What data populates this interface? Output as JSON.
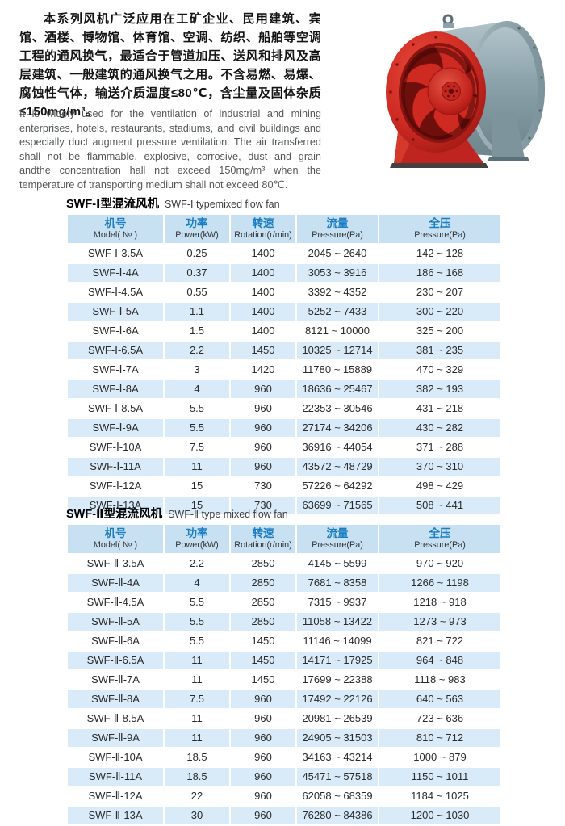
{
  "intro": {
    "zh": "本系列风机广泛应用在工矿企业、民用建筑、宾馆、酒楼、博物馆、体育馆、空调、纺织、船舶等空调工程的通风换气，最适合于管道加压、送风和排风及高层建筑、一般建筑的通风换气之用。不含易燃、易爆、腐蚀性气体，输送介质温度≤80℃，含尘量及固体杂质≤150mg/m³。",
    "en": "It is widely used for the ventilation of industrial and mining enterprises, hotels, restaurants, stadiums, and civil buildings and especially duct augment pressure ventilation. The air transferred shall not be flammable, explosive, corrosive, dust and grain andthe concentration hall not exceed 150mg/m³ when the temperature of transporting medium shall not exceed 80℃."
  },
  "fan_image": {
    "description": "mixed flow fan product photo",
    "front_color": "#cd2a22",
    "body_color": "#8ba2ab"
  },
  "colors": {
    "header_bg": "#c7e1f3",
    "stripe_bg": "#d9ebf8",
    "header_text_blue": "#1b7dc2"
  },
  "tables": [
    {
      "title_zh": "SWF-Ⅰ型混流风机",
      "title_en": "SWF-Ⅰ typemixed flow fan",
      "headers": [
        {
          "zh": "机号",
          "en": "Model( № )"
        },
        {
          "zh": "功率",
          "en": "Power(kW)"
        },
        {
          "zh": "转速",
          "en": "Rotation(r/min)"
        },
        {
          "zh": "流量",
          "en": "Pressure(Pa)"
        },
        {
          "zh": "全压",
          "en": "Pressure(Pa)"
        }
      ],
      "rows": [
        [
          "SWF-Ⅰ-3.5A",
          "0.25",
          "1400",
          "2045 ~ 2640",
          "142 ~ 128"
        ],
        [
          "SWF-Ⅰ-4A",
          "0.37",
          "1400",
          "3053 ~ 3916",
          "186 ~ 168"
        ],
        [
          "SWF-Ⅰ-4.5A",
          "0.55",
          "1400",
          "3392 ~ 4352",
          "230 ~ 207"
        ],
        [
          "SWF-Ⅰ-5A",
          "1.1",
          "1400",
          "5252 ~ 7433",
          "300 ~ 220"
        ],
        [
          "SWF-Ⅰ-6A",
          "1.5",
          "1400",
          "8121 ~ 10000",
          "325 ~ 200"
        ],
        [
          "SWF-Ⅰ-6.5A",
          "2.2",
          "1450",
          "10325 ~ 12714",
          "381 ~ 235"
        ],
        [
          "SWF-Ⅰ-7A",
          "3",
          "1420",
          "11780 ~ 15889",
          "470 ~ 329"
        ],
        [
          "SWF-Ⅰ-8A",
          "4",
          "960",
          "18636 ~ 25467",
          "382 ~ 193"
        ],
        [
          "SWF-Ⅰ-8.5A",
          "5.5",
          "960",
          "22353 ~ 30546",
          "431 ~ 218"
        ],
        [
          "SWF-Ⅰ-9A",
          "5.5",
          "960",
          "27174 ~ 34206",
          "430 ~ 282"
        ],
        [
          "SWF-Ⅰ-10A",
          "7.5",
          "960",
          "36916 ~ 44054",
          "371 ~ 288"
        ],
        [
          "SWF-Ⅰ-11A",
          "11",
          "960",
          "43572 ~ 48729",
          "370 ~ 310"
        ],
        [
          "SWF-Ⅰ-12A",
          "15",
          "730",
          "57226 ~ 64292",
          "498 ~ 429"
        ],
        [
          "SWF-Ⅰ-13A",
          "15",
          "730",
          "63699 ~ 71565",
          "508 ~ 441"
        ]
      ]
    },
    {
      "title_zh": "SWF-Ⅱ型混流风机",
      "title_en": "SWF-Ⅱ type mixed flow fan",
      "headers": [
        {
          "zh": "机号",
          "en": "Model( № )"
        },
        {
          "zh": "功率",
          "en": "Power(kW)"
        },
        {
          "zh": "转速",
          "en": "Rotation(r/min)"
        },
        {
          "zh": "流量",
          "en": "Pressure(Pa)"
        },
        {
          "zh": "全压",
          "en": "Pressure(Pa)"
        }
      ],
      "rows": [
        [
          "SWF-Ⅱ-3.5A",
          "2.2",
          "2850",
          "4145 ~ 5599",
          "970 ~ 920"
        ],
        [
          "SWF-Ⅱ-4A",
          "4",
          "2850",
          "7681 ~ 8358",
          "1266 ~ 1198"
        ],
        [
          "SWF-Ⅱ-4.5A",
          "5.5",
          "2850",
          "7315 ~ 9937",
          "1218 ~ 918"
        ],
        [
          "SWF-Ⅱ-5A",
          "5.5",
          "2850",
          "11058 ~ 13422",
          "1273 ~ 973"
        ],
        [
          "SWF-Ⅱ-6A",
          "5.5",
          "1450",
          "11146 ~ 14099",
          "821 ~ 722"
        ],
        [
          "SWF-Ⅱ-6.5A",
          "11",
          "1450",
          "14171 ~ 17925",
          "964 ~ 848"
        ],
        [
          "SWF-Ⅱ-7A",
          "11",
          "1450",
          "17699 ~ 22388",
          "1118 ~ 983"
        ],
        [
          "SWF-Ⅱ-8A",
          "7.5",
          "960",
          "17492 ~ 22126",
          "640 ~ 563"
        ],
        [
          "SWF-Ⅱ-8.5A",
          "11",
          "960",
          "20981 ~ 26539",
          "723 ~ 636"
        ],
        [
          "SWF-Ⅱ-9A",
          "11",
          "960",
          "24905 ~ 31503",
          "810 ~ 712"
        ],
        [
          "SWF-Ⅱ-10A",
          "18.5",
          "960",
          "34163 ~ 43214",
          "1000 ~ 879"
        ],
        [
          "SWF-Ⅱ-11A",
          "18.5",
          "960",
          "45471 ~ 57518",
          "1150 ~ 1011"
        ],
        [
          "SWF-Ⅱ-12A",
          "22",
          "960",
          "62058 ~ 68359",
          "1184 ~ 1025"
        ],
        [
          "SWF-Ⅱ-13A",
          "30",
          "960",
          "76280 ~ 84386",
          "1200 ~ 1030"
        ]
      ]
    }
  ]
}
